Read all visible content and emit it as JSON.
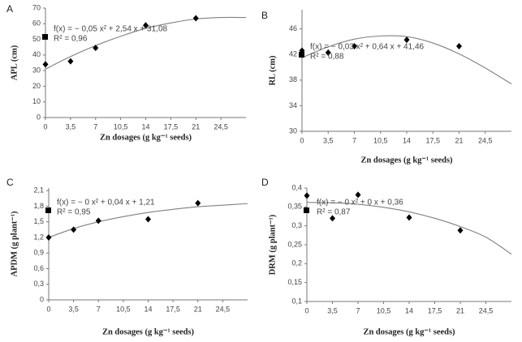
{
  "chart_data": [
    {
      "type": "scatter",
      "panel_label": "A",
      "y_label": "APL (cm)",
      "x_label": "Zn dosages (g kg⁻¹ seeds)",
      "x": [
        0,
        3.5,
        7,
        14,
        21
      ],
      "values": [
        34,
        36,
        44.5,
        59,
        63.5
      ],
      "color": "#000000",
      "fit": {
        "x": [
          0,
          3.5,
          7,
          10.5,
          14,
          17.5,
          21,
          24.5,
          28
        ],
        "values": [
          31,
          39,
          46,
          52,
          57,
          60.5,
          63,
          64,
          64
        ],
        "color": "#808080"
      },
      "annotations": [
        "f(x) = − 0,05 x² + 2,54 x + 31,08",
        "R² = 0,96"
      ],
      "xlim": [
        0,
        28
      ],
      "xticks": [
        0,
        {
          "value": 3.5,
          "label": "3,5"
        },
        7,
        {
          "value": 10.5,
          "label": "10,5"
        },
        14,
        {
          "value": 17.5,
          "label": "17,5"
        },
        21,
        {
          "value": 24.5,
          "label": "24,5"
        }
      ],
      "ylim": [
        0,
        70
      ],
      "yticks": [
        0,
        10,
        20,
        30,
        40,
        50,
        60,
        70
      ],
      "grid": false
    },
    {
      "type": "scatter",
      "panel_label": "B",
      "y_label": "RL (cm)",
      "x_label": "Zn dosages (g kg⁻¹ seeds)",
      "x": [
        0,
        3.5,
        7,
        14,
        21
      ],
      "values": [
        42.6,
        42.3,
        43.3,
        44.3,
        43.3
      ],
      "color": "#000000",
      "fit": {
        "x": [
          0,
          3.5,
          7,
          10.5,
          14,
          17.5,
          21,
          24.5,
          28
        ],
        "values": [
          41.5,
          43.2,
          44.4,
          44.9,
          44.8,
          43.8,
          42.1,
          39.9,
          37.4
        ],
        "color": "#808080"
      },
      "annotations": [
        "f(x) = − 0,03 x² + 0,64 x + 41,46",
        "R² = 0,88"
      ],
      "xlim": [
        0,
        28
      ],
      "xticks": [
        0,
        {
          "value": 3.5,
          "label": "3,5"
        },
        7,
        {
          "value": 10.5,
          "label": "10,5"
        },
        14,
        {
          "value": 17.5,
          "label": "17,5"
        },
        21,
        {
          "value": 24.5,
          "label": "24,5"
        }
      ],
      "ylim": [
        30,
        49
      ],
      "yticks": [
        30,
        34,
        38,
        42,
        46
      ],
      "grid": false
    },
    {
      "type": "scatter",
      "panel_label": "C",
      "y_label": "APDM (g plant⁻¹)",
      "x_label": "Zn dosages (g kg⁻¹ seeds)",
      "x": [
        0,
        3.5,
        7,
        14,
        21
      ],
      "values": [
        1.2,
        1.35,
        1.52,
        1.55,
        1.86
      ],
      "color": "#000000",
      "fit": {
        "x": [
          0,
          3.5,
          7,
          10.5,
          14,
          17.5,
          21,
          24.5,
          28
        ],
        "values": [
          1.2,
          1.37,
          1.5,
          1.6,
          1.68,
          1.74,
          1.79,
          1.82,
          1.85
        ],
        "color": "#808080"
      },
      "annotations": [
        "f(x) = − 0 x² + 0,04 x + 1,21",
        "R² = 0,95"
      ],
      "xlim": [
        0,
        28
      ],
      "xticks": [
        0,
        {
          "value": 3.5,
          "label": "3,5"
        },
        7,
        {
          "value": 10.5,
          "label": "10,5"
        },
        14,
        {
          "value": 17.5,
          "label": "17,5"
        },
        21,
        {
          "value": 24.5,
          "label": "24,5"
        }
      ],
      "ylim": [
        0,
        2.15
      ],
      "yticks": [
        0,
        {
          "value": 0.3,
          "label": "0,3"
        },
        {
          "value": 0.6,
          "label": "0,6"
        },
        {
          "value": 0.9,
          "label": "0,9"
        },
        {
          "value": 1.2,
          "label": "1,2"
        },
        {
          "value": 1.5,
          "label": "1,5"
        },
        {
          "value": 1.8,
          "label": "1,8"
        },
        {
          "value": 2.1,
          "label": "2,1"
        }
      ],
      "grid": false
    },
    {
      "type": "scatter",
      "panel_label": "D",
      "y_label": "DRM (g plant⁻¹)",
      "x_label": "Zn dosages (g kg⁻¹ seeds)",
      "x": [
        0,
        3.5,
        7,
        14,
        21
      ],
      "values": [
        0.38,
        0.32,
        0.382,
        0.322,
        0.288
      ],
      "color": "#000000",
      "fit": {
        "x": [
          0,
          3.5,
          7,
          10.5,
          14,
          17.5,
          21,
          24.5,
          28
        ],
        "values": [
          0.362,
          0.361,
          0.357,
          0.349,
          0.337,
          0.32,
          0.298,
          0.27,
          0.225
        ],
        "color": "#808080"
      },
      "annotations": [
        "f(x) = − 0 x² + 0 x + 0,36",
        "R² = 0,87"
      ],
      "xlim": [
        0,
        28
      ],
      "xticks": [
        0,
        {
          "value": 3.5,
          "label": "3,5"
        },
        7,
        {
          "value": 10.5,
          "label": "10,5"
        },
        14,
        {
          "value": 17.5,
          "label": "17,5"
        },
        21,
        {
          "value": 24.5,
          "label": "24,5"
        }
      ],
      "ylim": [
        0.1,
        0.4
      ],
      "yticks": [
        {
          "value": 0.1,
          "label": "0,1"
        },
        {
          "value": 0.15,
          "label": "0,15"
        },
        {
          "value": 0.2,
          "label": "0,2"
        },
        {
          "value": 0.25,
          "label": "0,25"
        },
        {
          "value": 0.3,
          "label": "0,3"
        },
        {
          "value": 0.35,
          "label": "0,35"
        },
        {
          "value": 0.4,
          "label": "0,4"
        }
      ],
      "grid": false
    }
  ]
}
